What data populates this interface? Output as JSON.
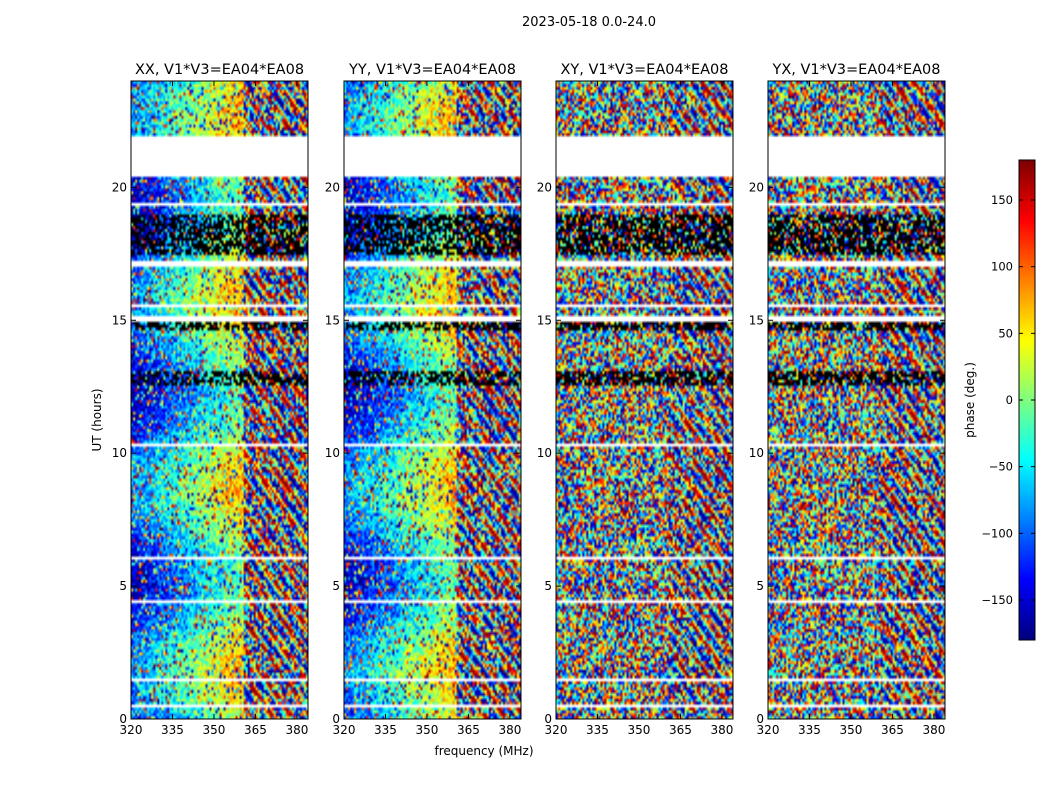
{
  "figure_title": "2023-05-18 0.0-24.0",
  "chart_data": [
    {
      "type": "heatmap",
      "title": "XX, V1*V3=EA04*EA08",
      "xlabel": "",
      "ylabel": "UT (hours)",
      "xlim": [
        320,
        384
      ],
      "ylim": [
        0,
        24
      ],
      "xticks": [
        320,
        335,
        350,
        365,
        380
      ],
      "yticks": [
        0,
        5,
        10,
        15,
        20
      ],
      "value": "phase (deg.)",
      "pattern": "coherent"
    },
    {
      "type": "heatmap",
      "title": "YY, V1*V3=EA04*EA08",
      "xlabel": "frequency (MHz)",
      "ylabel": "",
      "xlim": [
        320,
        384
      ],
      "ylim": [
        0,
        24
      ],
      "xticks": [
        320,
        335,
        350,
        365,
        380
      ],
      "yticks": [
        0,
        5,
        10,
        15,
        20
      ],
      "value": "phase (deg.)",
      "pattern": "coherent"
    },
    {
      "type": "heatmap",
      "title": "XY, V1*V3=EA04*EA08",
      "xlabel": "",
      "ylabel": "",
      "xlim": [
        320,
        384
      ],
      "ylim": [
        0,
        24
      ],
      "xticks": [
        320,
        335,
        350,
        365,
        380
      ],
      "yticks": [
        0,
        5,
        10,
        15,
        20
      ],
      "value": "phase (deg.)",
      "pattern": "cross"
    },
    {
      "type": "heatmap",
      "title": "YX, V1*V3=EA04*EA08",
      "xlabel": "",
      "ylabel": "",
      "xlim": [
        320,
        384
      ],
      "ylim": [
        0,
        24
      ],
      "xticks": [
        320,
        335,
        350,
        365,
        380
      ],
      "yticks": [
        0,
        5,
        10,
        15,
        20
      ],
      "value": "phase (deg.)",
      "pattern": "cross"
    }
  ],
  "colorbar": {
    "label": "phase (deg.)",
    "range": [
      -180,
      180
    ],
    "ticks": [
      150,
      100,
      50,
      0,
      -50,
      -100,
      -150
    ],
    "tick_labels": [
      "150",
      "100",
      "50",
      "0",
      "−50",
      "−100",
      "−150"
    ],
    "colormap": "jet"
  },
  "data_gaps_hours": [
    [
      0.45,
      0.58
    ],
    [
      1.47,
      1.58
    ],
    [
      4.35,
      4.5
    ],
    [
      5.95,
      6.1
    ],
    [
      10.25,
      10.4
    ],
    [
      15.0,
      15.15
    ],
    [
      15.5,
      15.62
    ],
    [
      17.05,
      17.2
    ],
    [
      19.27,
      19.38
    ],
    [
      20.35,
      21.95
    ]
  ],
  "noise_bands_hours": [
    [
      17.5,
      18.95
    ],
    [
      12.6,
      13.05
    ],
    [
      14.6,
      14.95
    ]
  ],
  "colors": {
    "frame": "#000000",
    "text": "#000000",
    "background": "#ffffff"
  }
}
